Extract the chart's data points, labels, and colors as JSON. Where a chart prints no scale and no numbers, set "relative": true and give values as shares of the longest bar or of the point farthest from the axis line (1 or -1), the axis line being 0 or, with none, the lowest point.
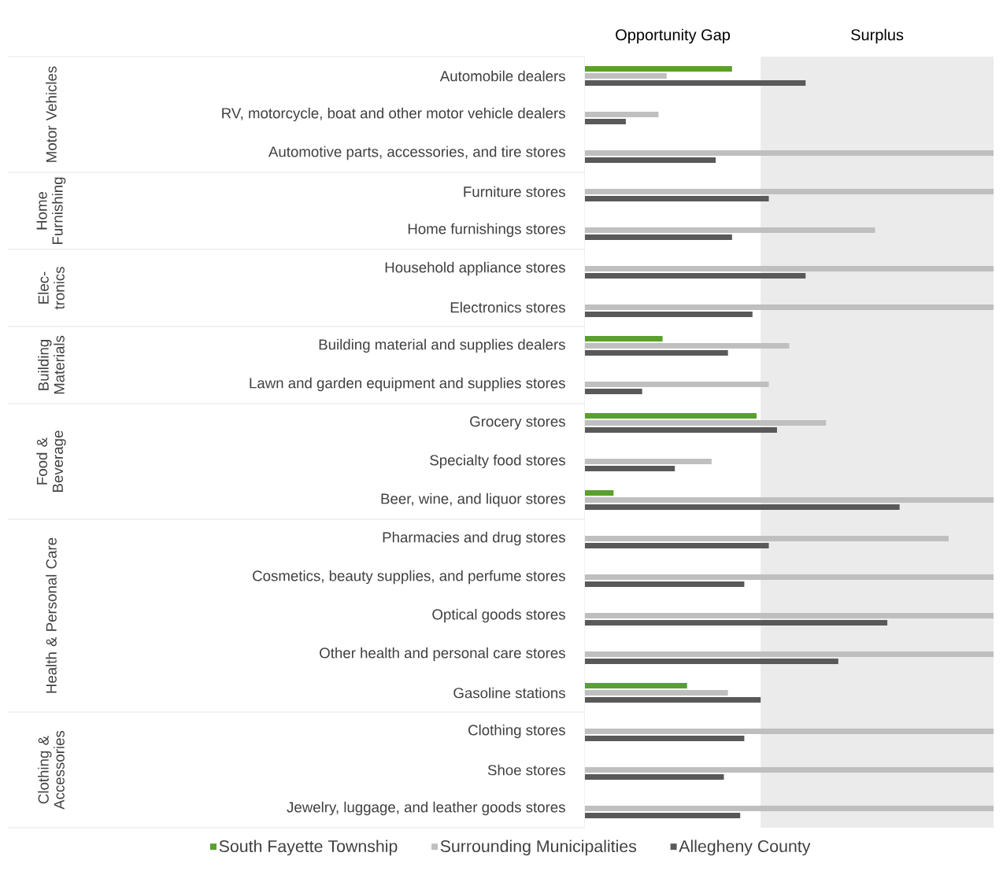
{
  "chart_data": {
    "type": "bar",
    "orientation": "horizontal",
    "relative": true,
    "legend": "bottom",
    "categories": [
      "Automobile dealers",
      "RV, motorcycle, boat and other motor vehicle dealers",
      "Automotive parts, accessories, and tire stores",
      "Furniture stores",
      "Home furnishings stores",
      "Household appliance stores",
      "Electronics stores",
      "Building material and supplies dealers",
      "Lawn and garden equipment and supplies stores",
      "Grocery stores",
      "Specialty food stores",
      "Beer, wine, and liquor stores",
      "Pharmacies and drug stores",
      "Cosmetics, beauty supplies, and perfume stores",
      "Optical goods stores",
      "Other health and personal care stores",
      "Gasoline stations",
      "Clothing stores",
      "Shoe stores",
      "Jewelry, luggage, and leather goods stores"
    ],
    "series": [
      {
        "name": "South Fayette Township",
        "color": "#5aa02c",
        "values": [
          0.36,
          null,
          null,
          null,
          null,
          null,
          null,
          0.19,
          null,
          0.42,
          null,
          0.07,
          null,
          null,
          null,
          null,
          0.25,
          null,
          null,
          null
        ]
      },
      {
        "name": "Surrounding Municipalities",
        "color": "#bfbfbf",
        "values": [
          0.2,
          0.18,
          1.0,
          1.0,
          0.71,
          1.0,
          1.0,
          0.5,
          0.45,
          0.59,
          0.31,
          1.0,
          0.89,
          1.0,
          1.0,
          1.0,
          0.35,
          1.0,
          1.0,
          1.0
        ]
      },
      {
        "name": "Allegheny County",
        "color": "#595959",
        "values": [
          0.54,
          0.1,
          0.32,
          0.45,
          0.36,
          0.54,
          0.41,
          0.35,
          0.14,
          0.47,
          0.22,
          0.77,
          0.45,
          0.39,
          0.74,
          0.62,
          0.43,
          0.39,
          0.34,
          0.38
        ]
      }
    ],
    "bands": [
      {
        "axis": "x",
        "from": 0,
        "to": 0.43,
        "label": "Opportunity Gap",
        "color": "#ffffff"
      },
      {
        "axis": "x",
        "from": 0.43,
        "to": 1.0,
        "label": "Surplus",
        "color": "#ebebeb"
      }
    ],
    "annotations": [
      "Motor Vehicles",
      "Home Furnishing",
      "Elec-tronics",
      "Building Materials",
      "Food & Beverage",
      "Health & Personal Care",
      "Clothing & Accessories"
    ]
  }
}
